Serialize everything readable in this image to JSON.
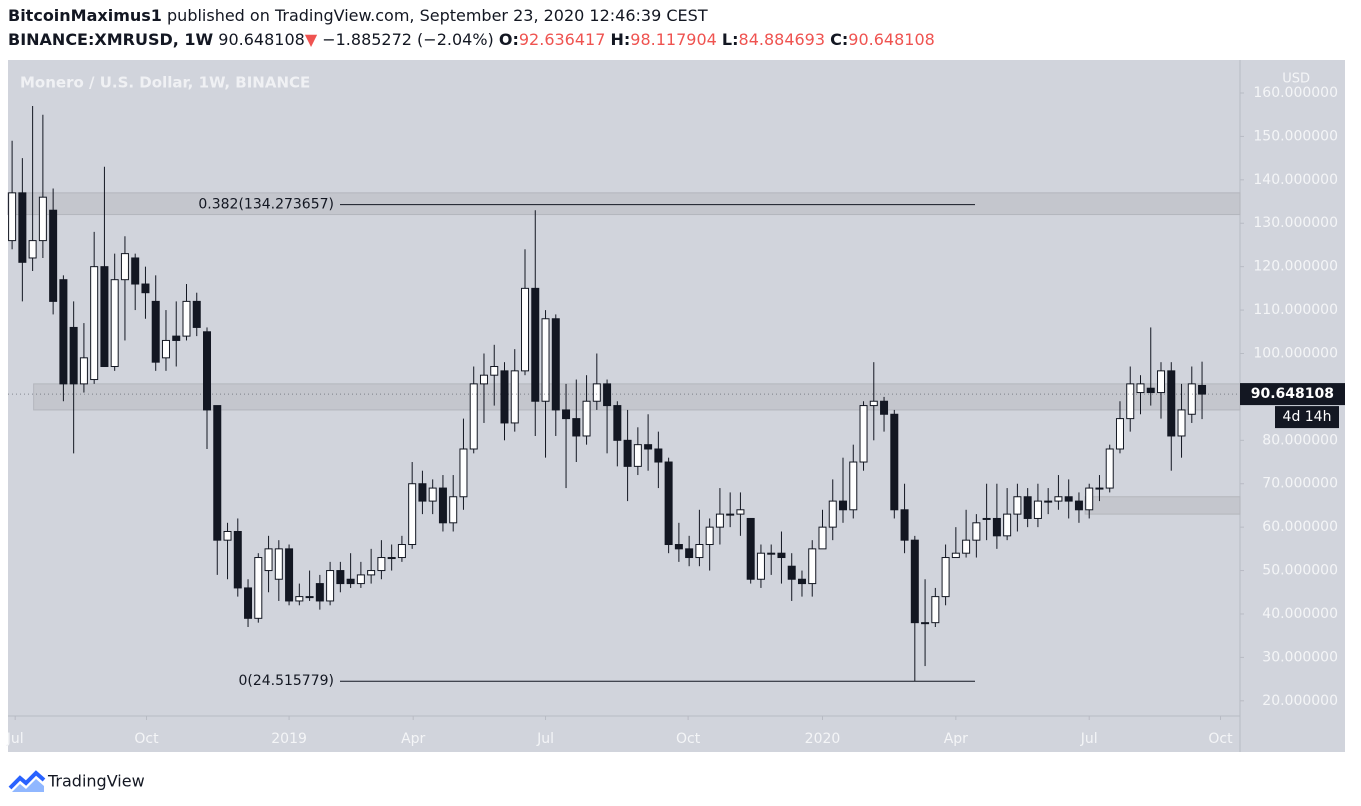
{
  "header": {
    "author": "BitcoinMaximus1",
    "published": "published on TradingView.com, September 23, 2020 12:46:39 CEST",
    "symbol": "BINANCE:XMRUSD, 1W",
    "arrow": "▼",
    "change": "−1.885272 (−2.04%)",
    "open_label": "O:",
    "high_label": "H:",
    "low_label": "L:",
    "close_label": "C:"
  },
  "footer": {
    "brand": "TradingView"
  },
  "chart_data": {
    "type": "candlestick",
    "title": "Monero / U.S. Dollar, 1W, BINANCE",
    "y_axis_label": "USD",
    "countdown": "4d 14h",
    "up_color": "#ffffff",
    "down_color": "#131722",
    "xlim": [
      -0.4,
      119.7
    ],
    "xticks": [
      {
        "value": 0.3,
        "label": "Jul"
      },
      {
        "value": 13.1,
        "label": "Oct"
      },
      {
        "value": 27,
        "label": "2019"
      },
      {
        "value": 39.1,
        "label": "Apr"
      },
      {
        "value": 52,
        "label": "Jul"
      },
      {
        "value": 65.9,
        "label": "Oct"
      },
      {
        "value": 79,
        "label": "2020"
      },
      {
        "value": 92,
        "label": "Apr"
      },
      {
        "value": 105,
        "label": "Jul"
      },
      {
        "value": 117.8,
        "label": "Oct"
      }
    ],
    "ylim": [
      16.5,
      167.6
    ],
    "yticks": [
      {
        "value": 20,
        "label": "20.000000"
      },
      {
        "value": 30,
        "label": "30.000000"
      },
      {
        "value": 40,
        "label": "40.000000"
      },
      {
        "value": 50,
        "label": "50.000000"
      },
      {
        "value": 60,
        "label": "60.000000"
      },
      {
        "value": 70,
        "label": "70.000000"
      },
      {
        "value": 80,
        "label": "80.000000"
      },
      {
        "value": 90,
        "label": "90.000000"
      },
      {
        "value": 100,
        "label": "100.000000"
      },
      {
        "value": 110,
        "label": "110.000000"
      },
      {
        "value": 120,
        "label": "120.000000"
      },
      {
        "value": 130,
        "label": "130.000000"
      },
      {
        "value": 140,
        "label": "140.000000"
      },
      {
        "value": 150,
        "label": "150.000000"
      },
      {
        "value": 160,
        "label": "160.000000"
      }
    ],
    "fib_levels": [
      {
        "value": 134.273657,
        "label": "0.382(134.273657)"
      },
      {
        "value": 24.515779,
        "label": "0(24.515779)"
      }
    ],
    "zones": [
      {
        "from": 132,
        "to": 137
      },
      {
        "from": 87,
        "to": 93
      },
      {
        "from": 63,
        "to": 67
      }
    ],
    "open": [
      126,
      137,
      122,
      126,
      133,
      117,
      106,
      93,
      94,
      120,
      97,
      117,
      122,
      116,
      112,
      99,
      104,
      104,
      112,
      105,
      88,
      57,
      59,
      46,
      39,
      50,
      48,
      55,
      43,
      44,
      47,
      43,
      50,
      48,
      47,
      49,
      50,
      53,
      53,
      56,
      70,
      66,
      69,
      61,
      67,
      78,
      93,
      95,
      96,
      84,
      96,
      115,
      89,
      108,
      87,
      85,
      81,
      89,
      93,
      88,
      80,
      74,
      79,
      78,
      75,
      56,
      55,
      53,
      56,
      60,
      63,
      63,
      62,
      48,
      54,
      54,
      51,
      48,
      47,
      55,
      60,
      66,
      64,
      75,
      88,
      89,
      86,
      64,
      57,
      38,
      38,
      44,
      53,
      54,
      57,
      62,
      62,
      58,
      63,
      67,
      62,
      66,
      66,
      67,
      66,
      64,
      69,
      69,
      78,
      85,
      91,
      92,
      91,
      96,
      81,
      86,
      92.636417
    ],
    "high": [
      149,
      145,
      157,
      155,
      138,
      118,
      112,
      107,
      128,
      143,
      123,
      127,
      123,
      120,
      118,
      110,
      112,
      116,
      114,
      106,
      88,
      61,
      62,
      48,
      54,
      58,
      57,
      56,
      47,
      50,
      49,
      52,
      52,
      54,
      52,
      55,
      57,
      56,
      58,
      75,
      73,
      71,
      72,
      72,
      85,
      97,
      100,
      102,
      98,
      101,
      124,
      133,
      110,
      109,
      93,
      94,
      95,
      100,
      94,
      89,
      87,
      83,
      86,
      82,
      76,
      61,
      58,
      64,
      62,
      69,
      68,
      68,
      62,
      56,
      56,
      59,
      54,
      50,
      57,
      64,
      71,
      76,
      79,
      89,
      98,
      90,
      87,
      70,
      58,
      48,
      46,
      56,
      60,
      64,
      63,
      70,
      70,
      69,
      70,
      69,
      70,
      69,
      72,
      71,
      68,
      70,
      72,
      79,
      89,
      97,
      95,
      106,
      98,
      98,
      93,
      97,
      98.117904
    ],
    "low": [
      124,
      112,
      119,
      122,
      109,
      89,
      77,
      91,
      93,
      97,
      96,
      103,
      110,
      108,
      96,
      96,
      97,
      103,
      104,
      78,
      49,
      48,
      44,
      37,
      38,
      45,
      43,
      42,
      42,
      43,
      41,
      42,
      45,
      46,
      46,
      47,
      48,
      50,
      52,
      55,
      63,
      63,
      59,
      59,
      64,
      77,
      84,
      88,
      80,
      82,
      95,
      81,
      76,
      81,
      69,
      75,
      79,
      87,
      77,
      74,
      66,
      72,
      73,
      69,
      54,
      52,
      51,
      51,
      50,
      56,
      60,
      58,
      47,
      46,
      49,
      47,
      43,
      44,
      44,
      55,
      57,
      61,
      62,
      73,
      80,
      82,
      62,
      54,
      24.5,
      28,
      37,
      42,
      53,
      53,
      53,
      57,
      55,
      57,
      59,
      60,
      60,
      63,
      64,
      62,
      61,
      62,
      66,
      68,
      77,
      82,
      86,
      88,
      85,
      73,
      76,
      84,
      84.884693
    ],
    "close": [
      137,
      121,
      126,
      136,
      112,
      93,
      93,
      99,
      120,
      97,
      117,
      123,
      116,
      114,
      98,
      103,
      103,
      112,
      106,
      87,
      57,
      59,
      46,
      39,
      53,
      55,
      55,
      43,
      44,
      44,
      43,
      50,
      47,
      47,
      49,
      50,
      53,
      53,
      56,
      70,
      66,
      69,
      61,
      67,
      78,
      93,
      95,
      97,
      84,
      96,
      115,
      89,
      108,
      87,
      85,
      81,
      89,
      93,
      88,
      80,
      74,
      79,
      78,
      75,
      56,
      55,
      53,
      56,
      60,
      63,
      63,
      64,
      48,
      54,
      54,
      53,
      48,
      47,
      55,
      60,
      66,
      64,
      75,
      88,
      89,
      86,
      64,
      57,
      38,
      38,
      44,
      53,
      54,
      57,
      61,
      62,
      58,
      63,
      67,
      62,
      66,
      66,
      67,
      66,
      64,
      69,
      69,
      78,
      85,
      93,
      93,
      91,
      96,
      81,
      87,
      93,
      90.648108
    ]
  }
}
